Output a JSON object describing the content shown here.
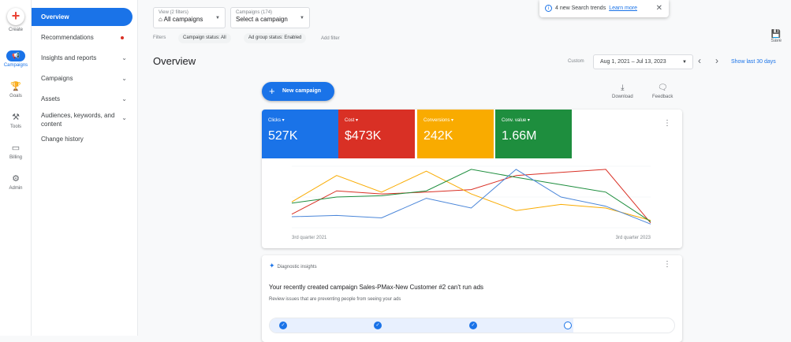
{
  "rail": {
    "items": [
      {
        "label": "Create",
        "icon": "plus-icon"
      },
      {
        "label": "Campaigns",
        "icon": "megaphone-icon"
      },
      {
        "label": "Goals",
        "icon": "trophy-icon"
      },
      {
        "label": "Tools",
        "icon": "tools-icon"
      },
      {
        "label": "Billing",
        "icon": "card-icon"
      },
      {
        "label": "Admin",
        "icon": "gear-icon"
      }
    ]
  },
  "nav": {
    "items": [
      {
        "label": "Overview"
      },
      {
        "label": "Recommendations"
      },
      {
        "label": "Insights and reports"
      },
      {
        "label": "Campaigns"
      },
      {
        "label": "Assets"
      },
      {
        "label": "Audiences, keywords, and content"
      },
      {
        "label": "Change history"
      }
    ]
  },
  "header": {
    "view_label": "View (2 filters)",
    "view_value": "All campaigns",
    "campaigns_label": "Campaigns (174)",
    "campaigns_value": "Select a campaign",
    "filters_label": "Filters",
    "chips": [
      "Campaign status: All",
      "Ad group status: Enabled"
    ],
    "add_filter": "Add filter",
    "save_label": "Save"
  },
  "notification": {
    "text": "4 new Search trends",
    "link": "Learn more"
  },
  "overview": {
    "title": "Overview",
    "custom_label": "Custom",
    "date_range": "Aug 1, 2021 – Jul 13, 2023",
    "show_last": "Show last 30 days",
    "new_campaign": "New campaign",
    "download": "Download",
    "feedback": "Feedback"
  },
  "metrics": [
    {
      "label": "Clicks",
      "value": "527K",
      "color": "#1a73e8"
    },
    {
      "label": "Cost",
      "value": "$473K",
      "color": "#d93025"
    },
    {
      "label": "Conversions",
      "value": "242K",
      "color": "#f9ab00"
    },
    {
      "label": "Conv. value",
      "value": "1.66M",
      "color": "#1e8e3e"
    }
  ],
  "chart_data": {
    "type": "line",
    "x": [
      "3rd quarter 2021",
      "",
      "",
      "",
      "",
      "",
      "",
      "",
      "3rd quarter 2023"
    ],
    "series": [
      {
        "color": "#d93025",
        "values": [
          0.22,
          0.6,
          0.55,
          0.58,
          0.62,
          0.85,
          0.9,
          0.95,
          0.08
        ]
      },
      {
        "color": "#f9ab00",
        "values": [
          0.42,
          0.85,
          0.58,
          0.92,
          0.55,
          0.28,
          0.38,
          0.32,
          0.12
        ]
      },
      {
        "color": "#1e8e3e",
        "values": [
          0.4,
          0.5,
          0.52,
          0.6,
          0.95,
          0.82,
          0.7,
          0.58,
          0.1
        ]
      },
      {
        "color": "#4a86d9",
        "values": [
          0.18,
          0.2,
          0.16,
          0.48,
          0.32,
          0.95,
          0.5,
          0.35,
          0.06
        ]
      }
    ],
    "xlabel_left": "3rd quarter 2021",
    "xlabel_right": "3rd quarter 2023"
  },
  "diagnostics": {
    "header": "Diagnostic insights",
    "title": "Your recently created campaign Sales-PMax-New Customer #2 can't run ads",
    "subtitle": "Review issues that are preventing people from seeing your ads",
    "steps_done": 3,
    "steps_total": 4
  }
}
